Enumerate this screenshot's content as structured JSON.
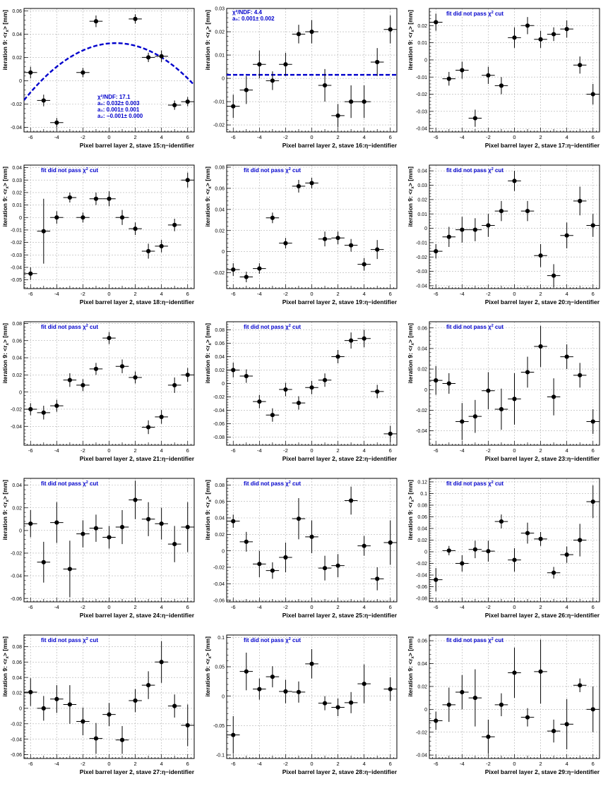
{
  "common": {
    "ylabel": "iteration 9: <r",
    "ylabel_sub": "x",
    "ylabel_unit": "> [mm]",
    "no_fit_text": "fit did not pass χ",
    "no_fit_sup": "2",
    "no_fit_tail": " cut",
    "fit_color": "#0000cc",
    "marker_color": "#000000",
    "grid_color": "#b0b0b0"
  },
  "chart_data": [
    {
      "type": "scatter",
      "title": "",
      "xlabel": "Pixel barrel layer 2, stave 15:η−identifier",
      "ylabel": "iteration 9: <r_x> [mm]",
      "xlim": [
        -6.5,
        6.5
      ],
      "ylim": [
        -0.044,
        0.062
      ],
      "yticks": [
        "-0.04",
        "-0.02",
        "0",
        "0.02",
        "0.04",
        "0.06"
      ],
      "ytick_values": [
        -0.04,
        -0.02,
        0,
        0.02,
        0.04,
        0.06
      ],
      "xticks": [
        -6,
        -4,
        -2,
        0,
        2,
        4,
        6
      ],
      "x": [
        -6,
        -5,
        -4,
        -2,
        -1,
        2,
        3,
        4,
        5,
        6
      ],
      "y": [
        0.007,
        -0.017,
        -0.036,
        0.007,
        0.051,
        0.053,
        0.02,
        0.021,
        -0.021,
        -0.018
      ],
      "yerr": [
        0.005,
        0.005,
        0.004,
        0.004,
        0.005,
        0.004,
        0.004,
        0.005,
        0.004,
        0.004
      ],
      "fit": {
        "type": "pol2",
        "coef": [
          0.032,
          0.001,
          -0.001
        ],
        "lines": [
          "χ²/NDF: 17.1",
          "a₀: 0.032± 0.003",
          "a₁: 0.001± 0.001",
          "a₂: −0.001± 0.000"
        ]
      },
      "annotation": ""
    },
    {
      "type": "scatter",
      "xlabel": "Pixel barrel layer 2, stave 16:η−identifier",
      "ylabel": "iteration 9: <r_x> [mm]",
      "xlim": [
        -6.5,
        6.5
      ],
      "ylim": [
        -0.023,
        0.03
      ],
      "yticks": [
        "-0.02",
        "-0.01",
        "0",
        "0.01",
        "0.02",
        "0.03"
      ],
      "ytick_values": [
        -0.02,
        -0.01,
        0,
        0.01,
        0.02,
        0.03
      ],
      "xticks": [
        -6,
        -4,
        -2,
        0,
        2,
        4,
        6
      ],
      "x": [
        -6,
        -5,
        -4,
        -3,
        -2,
        -1,
        0,
        1,
        2,
        3,
        4,
        5,
        6
      ],
      "y": [
        -0.012,
        -0.005,
        0.006,
        -0.001,
        0.006,
        0.019,
        0.02,
        -0.003,
        -0.016,
        -0.01,
        -0.01,
        0.007,
        0.021
      ],
      "yerr": [
        0.005,
        0.006,
        0.006,
        0.004,
        0.005,
        0.004,
        0.005,
        0.007,
        0.005,
        0.007,
        0.007,
        0.006,
        0.006
      ],
      "fit": {
        "type": "pol0",
        "coef": [
          0.0015
        ],
        "lines": [
          "χ²/NDF: 4.4",
          "a₀: 0.001± 0.002"
        ]
      },
      "annotation": ""
    },
    {
      "type": "scatter",
      "xlabel": "Pixel barrel layer 2, stave 17:η−identifier",
      "ylabel": "iteration 9: <r_x> [mm]",
      "xlim": [
        -6.5,
        6.5
      ],
      "ylim": [
        -0.042,
        0.03
      ],
      "yticks": [
        "-0.04",
        "-0.03",
        "-0.02",
        "-0.01",
        "0",
        "0.01",
        "0.02"
      ],
      "ytick_values": [
        -0.04,
        -0.03,
        -0.02,
        -0.01,
        0,
        0.01,
        0.02
      ],
      "xticks": [
        -6,
        -4,
        -2,
        0,
        2,
        4,
        6
      ],
      "x": [
        -6,
        -5,
        -4,
        -3,
        -2,
        -1,
        0,
        1,
        2,
        3,
        4,
        5,
        6
      ],
      "y": [
        0.022,
        -0.011,
        -0.006,
        -0.034,
        -0.009,
        -0.015,
        0.013,
        0.02,
        0.012,
        0.015,
        0.018,
        -0.003,
        -0.02
      ],
      "yerr": [
        0.005,
        0.004,
        0.005,
        0.005,
        0.005,
        0.005,
        0.006,
        0.005,
        0.005,
        0.004,
        0.005,
        0.005,
        0.006
      ],
      "fit": null,
      "annotation": "no_fit"
    },
    {
      "type": "scatter",
      "xlabel": "Pixel barrel layer 2, stave 18:η−identifier",
      "ylabel": "iteration 9: <r_x> [mm]",
      "xlim": [
        -6.5,
        6.5
      ],
      "ylim": [
        -0.057,
        0.042
      ],
      "yticks": [
        "-0.05",
        "-0.04",
        "-0.03",
        "-0.02",
        "-0.01",
        "0",
        "0.01",
        "0.02",
        "0.03",
        "0.04"
      ],
      "ytick_values": [
        -0.05,
        -0.04,
        -0.03,
        -0.02,
        -0.01,
        0,
        0.01,
        0.02,
        0.03,
        0.04
      ],
      "xticks": [
        -6,
        -4,
        -2,
        0,
        2,
        4,
        6
      ],
      "x": [
        -6,
        -5,
        -4,
        -3,
        -2,
        -1,
        0,
        1,
        2,
        3,
        4,
        5,
        6
      ],
      "y": [
        -0.045,
        -0.011,
        0.0,
        0.016,
        0.0,
        0.015,
        0.015,
        0.0,
        -0.009,
        -0.027,
        -0.023,
        -0.006,
        0.03
      ],
      "yerr": [
        0.005,
        0.026,
        0.005,
        0.004,
        0.004,
        0.005,
        0.006,
        0.006,
        0.005,
        0.006,
        0.005,
        0.005,
        0.006
      ],
      "fit": null,
      "annotation": "no_fit"
    },
    {
      "type": "scatter",
      "xlabel": "Pixel barrel layer 2, stave 19:η−identifier",
      "ylabel": "iteration 9: <r_x> [mm]",
      "xlim": [
        -6.5,
        6.5
      ],
      "ylim": [
        -0.035,
        0.082
      ],
      "yticks": [
        "-0.02",
        "0",
        "0.02",
        "0.04",
        "0.06",
        "0.08"
      ],
      "ytick_values": [
        -0.02,
        0,
        0.02,
        0.04,
        0.06,
        0.08
      ],
      "xticks": [
        -6,
        -4,
        -2,
        0,
        2,
        4,
        6
      ],
      "x": [
        -6,
        -5,
        -4,
        -3,
        -2,
        -1,
        0,
        1,
        2,
        3,
        4,
        5,
        6
      ],
      "y": [
        -0.017,
        -0.024,
        -0.016,
        0.032,
        0.008,
        0.062,
        0.065,
        0.012,
        0.013,
        0.006,
        -0.012,
        0.002,
        null
      ],
      "yerr": [
        0.006,
        0.005,
        0.005,
        0.005,
        0.005,
        0.006,
        0.005,
        0.007,
        0.006,
        0.006,
        0.006,
        0.009,
        null
      ],
      "fit": null,
      "annotation": "no_fit"
    },
    {
      "type": "scatter",
      "xlabel": "Pixel barrel layer 2, stave 20:η−identifier",
      "ylabel": "iteration 9: <r_x> [mm]",
      "xlim": [
        -6.5,
        6.5
      ],
      "ylim": [
        -0.042,
        0.044
      ],
      "yticks": [
        "-0.04",
        "-0.03",
        "-0.02",
        "-0.01",
        "0",
        "0.01",
        "0.02",
        "0.03",
        "0.04"
      ],
      "ytick_values": [
        -0.04,
        -0.03,
        -0.02,
        -0.01,
        0,
        0.01,
        0.02,
        0.03,
        0.04
      ],
      "xticks": [
        -6,
        -4,
        -2,
        0,
        2,
        4,
        6
      ],
      "x": [
        -6,
        -5,
        -4,
        -3,
        -2,
        -1,
        0,
        1,
        2,
        3,
        4,
        5,
        6
      ],
      "y": [
        -0.016,
        -0.006,
        -0.001,
        -0.001,
        0.002,
        0.012,
        0.033,
        0.012,
        -0.019,
        -0.033,
        -0.005,
        0.019,
        0.002
      ],
      "yerr": [
        0.005,
        0.007,
        0.009,
        0.008,
        0.008,
        0.007,
        0.007,
        0.007,
        0.008,
        0.008,
        0.009,
        0.01,
        0.008
      ],
      "fit": null,
      "annotation": "no_fit"
    },
    {
      "type": "scatter",
      "xlabel": "Pixel barrel layer 2, stave 21:η−identifier",
      "ylabel": "iteration 9: <r_x> [mm]",
      "xlim": [
        -6.5,
        6.5
      ],
      "ylim": [
        -0.062,
        0.082
      ],
      "yticks": [
        "-0.04",
        "-0.02",
        "0",
        "0.02",
        "0.04",
        "0.06",
        "0.08"
      ],
      "ytick_values": [
        -0.04,
        -0.02,
        0,
        0.02,
        0.04,
        0.06,
        0.08
      ],
      "xticks": [
        -6,
        -4,
        -2,
        0,
        2,
        4,
        6
      ],
      "x": [
        -6,
        -5,
        -4,
        -3,
        -2,
        -1,
        0,
        1,
        2,
        3,
        4,
        5,
        6
      ],
      "y": [
        -0.02,
        -0.024,
        -0.016,
        0.014,
        0.008,
        0.027,
        0.063,
        0.03,
        0.017,
        -0.041,
        -0.029,
        0.008,
        0.02
      ],
      "yerr": [
        0.007,
        0.008,
        0.007,
        0.008,
        0.007,
        0.007,
        0.007,
        0.008,
        0.007,
        0.008,
        0.008,
        0.009,
        0.008
      ],
      "fit": null,
      "annotation": "no_fit"
    },
    {
      "type": "scatter",
      "xlabel": "Pixel barrel layer 2, stave 22:η−identifier",
      "ylabel": "iteration 9: <r_x> [mm]",
      "xlim": [
        -6.5,
        6.5
      ],
      "ylim": [
        -0.092,
        0.092
      ],
      "yticks": [
        "-0.08",
        "-0.06",
        "-0.04",
        "-0.02",
        "0",
        "0.02",
        "0.04",
        "0.06",
        "0.08"
      ],
      "ytick_values": [
        -0.08,
        -0.06,
        -0.04,
        -0.02,
        0,
        0.02,
        0.04,
        0.06,
        0.08
      ],
      "xticks": [
        -6,
        -4,
        -2,
        0,
        2,
        4,
        6
      ],
      "x": [
        -6,
        -5,
        -4,
        -3,
        -2,
        -1,
        0,
        1,
        2,
        3,
        4,
        5,
        6
      ],
      "y": [
        0.02,
        0.011,
        -0.027,
        -0.047,
        -0.009,
        -0.029,
        -0.006,
        0.005,
        0.04,
        0.064,
        0.067,
        -0.012,
        -0.075
      ],
      "yerr": [
        0.011,
        0.01,
        0.01,
        0.01,
        0.01,
        0.01,
        0.01,
        0.01,
        0.01,
        0.012,
        0.013,
        0.01,
        0.012
      ],
      "fit": null,
      "annotation": "no_fit"
    },
    {
      "type": "scatter",
      "xlabel": "Pixel barrel layer 2, stave 23:η−identifier",
      "ylabel": "iteration 9: <r_x> [mm]",
      "xlim": [
        -6.5,
        6.5
      ],
      "ylim": [
        -0.054,
        0.066
      ],
      "yticks": [
        "-0.04",
        "-0.02",
        "0",
        "0.02",
        "0.04",
        "0.06"
      ],
      "ytick_values": [
        -0.04,
        -0.02,
        0,
        0.02,
        0.04,
        0.06
      ],
      "xticks": [
        -6,
        -4,
        -2,
        0,
        2,
        4,
        6
      ],
      "x": [
        -6,
        -5,
        -4,
        -3,
        -2,
        -1,
        0,
        1,
        2,
        3,
        4,
        5,
        6
      ],
      "y": [
        0.009,
        0.006,
        -0.031,
        -0.026,
        -0.001,
        -0.019,
        -0.009,
        0.017,
        0.042,
        -0.007,
        0.032,
        0.014,
        -0.031
      ],
      "yerr": [
        0.014,
        0.01,
        0.018,
        0.016,
        0.018,
        0.02,
        0.025,
        0.015,
        0.02,
        0.018,
        0.012,
        0.012,
        0.012
      ],
      "fit": null,
      "annotation": "no_fit"
    },
    {
      "type": "scatter",
      "xlabel": "Pixel barrel layer 2, stave 24:η−identifier",
      "ylabel": "iteration 9: <r_x> [mm]",
      "xlim": [
        -6.5,
        6.5
      ],
      "ylim": [
        -0.063,
        0.046
      ],
      "yticks": [
        "-0.06",
        "-0.04",
        "-0.02",
        "0",
        "0.02",
        "0.04"
      ],
      "ytick_values": [
        -0.06,
        -0.04,
        -0.02,
        0,
        0.02,
        0.04
      ],
      "xticks": [
        -6,
        -4,
        -2,
        0,
        2,
        4,
        6
      ],
      "x": [
        -6,
        -5,
        -4,
        -3,
        -2,
        -1,
        0,
        1,
        2,
        3,
        4,
        5,
        6
      ],
      "y": [
        0.006,
        -0.028,
        0.007,
        -0.034,
        -0.003,
        0.002,
        -0.006,
        0.003,
        0.027,
        0.01,
        0.006,
        -0.012,
        0.003
      ],
      "yerr": [
        0.012,
        0.018,
        0.018,
        0.025,
        0.012,
        0.012,
        0.01,
        0.015,
        0.017,
        0.015,
        0.014,
        0.016,
        0.022
      ],
      "fit": null,
      "annotation": "no_fit"
    },
    {
      "type": "scatter",
      "xlabel": "Pixel barrel layer 2, stave 25:η−identifier",
      "ylabel": "iteration 9: <r_x> [mm]",
      "xlim": [
        -6.5,
        6.5
      ],
      "ylim": [
        -0.062,
        0.088
      ],
      "yticks": [
        "-0.06",
        "-0.04",
        "-0.02",
        "0",
        "0.02",
        "0.04",
        "0.06",
        "0.08"
      ],
      "ytick_values": [
        -0.06,
        -0.04,
        -0.02,
        0,
        0.02,
        0.04,
        0.06,
        0.08
      ],
      "xticks": [
        -6,
        -4,
        -2,
        0,
        2,
        4,
        6
      ],
      "x": [
        -6,
        -5,
        -4,
        -3,
        -2,
        -1,
        0,
        1,
        2,
        3,
        4,
        5,
        6
      ],
      "y": [
        0.036,
        0.011,
        -0.016,
        -0.024,
        -0.008,
        0.039,
        0.017,
        -0.021,
        -0.018,
        0.061,
        0.006,
        -0.034,
        0.01
      ],
      "yerr": [
        0.008,
        0.012,
        0.016,
        0.01,
        0.018,
        0.025,
        0.02,
        0.015,
        0.014,
        0.017,
        0.012,
        0.014,
        0.027
      ],
      "fit": null,
      "annotation": "no_fit"
    },
    {
      "type": "scatter",
      "xlabel": "Pixel barrel layer 2, stave 26:η−identifier",
      "ylabel": "iteration 9: <r_x> [mm]",
      "xlim": [
        -6.5,
        6.5
      ],
      "ylim": [
        -0.086,
        0.126
      ],
      "yticks": [
        "-0.08",
        "-0.06",
        "-0.04",
        "-0.02",
        "0",
        "0.02",
        "0.04",
        "0.06",
        "0.08",
        "0.1",
        "0.12"
      ],
      "ytick_values": [
        -0.08,
        -0.06,
        -0.04,
        -0.02,
        0,
        0.02,
        0.04,
        0.06,
        0.08,
        0.1,
        0.12
      ],
      "xticks": [
        -6,
        -4,
        -2,
        0,
        2,
        4,
        6
      ],
      "x": [
        -6,
        -5,
        -4,
        -3,
        -2,
        -1,
        0,
        1,
        2,
        3,
        4,
        5,
        6
      ],
      "y": [
        -0.048,
        0.002,
        -0.02,
        0.004,
        0.001,
        0.052,
        -0.014,
        0.032,
        0.022,
        -0.036,
        -0.005,
        0.02,
        0.086
      ],
      "yerr": [
        0.02,
        0.008,
        0.014,
        0.015,
        0.018,
        0.012,
        0.02,
        0.018,
        0.012,
        0.01,
        0.014,
        0.028,
        0.028
      ],
      "fit": null,
      "annotation": "no_fit"
    },
    {
      "type": "scatter",
      "xlabel": "Pixel barrel layer 2, stave 27:η−identifier",
      "ylabel": "iteration 9: <r_x> [mm]",
      "xlim": [
        -6.5,
        6.5
      ],
      "ylim": [
        -0.065,
        0.095
      ],
      "yticks": [
        "-0.06",
        "-0.04",
        "-0.02",
        "0",
        "0.02",
        "0.04",
        "0.06",
        "0.08"
      ],
      "ytick_values": [
        -0.06,
        -0.04,
        -0.02,
        0,
        0.02,
        0.04,
        0.06,
        0.08
      ],
      "xticks": [
        -6,
        -4,
        -2,
        0,
        2,
        4,
        6
      ],
      "x": [
        -6,
        -5,
        -4,
        -3,
        -2,
        -1,
        0,
        1,
        2,
        3,
        4,
        5,
        6
      ],
      "y": [
        0.021,
        0.0,
        0.012,
        0.005,
        -0.017,
        -0.039,
        -0.008,
        -0.041,
        0.01,
        0.03,
        0.06,
        0.003,
        -0.022
      ],
      "yerr": [
        0.018,
        0.016,
        0.018,
        0.025,
        0.018,
        0.02,
        0.015,
        0.018,
        0.015,
        0.018,
        0.027,
        0.015,
        0.027
      ],
      "fit": null,
      "annotation": "no_fit"
    },
    {
      "type": "scatter",
      "xlabel": "Pixel barrel layer 2, stave 28:η−identifier",
      "ylabel": "iteration 9: <r_x> [mm]",
      "xlim": [
        -6.5,
        6.5
      ],
      "ylim": [
        -0.106,
        0.104
      ],
      "yticks": [
        "-0.1",
        "-0.05",
        "0",
        "0.05",
        "0.1"
      ],
      "ytick_values": [
        -0.1,
        -0.05,
        0,
        0.05,
        0.1
      ],
      "xticks": [
        -6,
        -4,
        -2,
        0,
        2,
        4,
        6
      ],
      "x": [
        -6,
        -5,
        -4,
        -3,
        -2,
        -1,
        0,
        1,
        2,
        3,
        4,
        5,
        6
      ],
      "y": [
        -0.066,
        0.042,
        0.012,
        0.033,
        0.008,
        0.007,
        0.055,
        -0.012,
        -0.019,
        -0.011,
        0.021,
        null,
        0.012
      ],
      "yerr": [
        0.032,
        0.032,
        0.018,
        0.018,
        0.02,
        0.018,
        0.025,
        0.012,
        0.015,
        0.018,
        0.033,
        null,
        0.02
      ],
      "fit": null,
      "annotation": "no_fit"
    },
    {
      "type": "scatter",
      "xlabel": "Pixel barrel layer 2, stave 29:η−identifier",
      "ylabel": "iteration 9: <r_x> [mm]",
      "xlim": [
        -6.5,
        6.5
      ],
      "ylim": [
        -0.043,
        0.065
      ],
      "yticks": [
        "-0.04",
        "-0.02",
        "0",
        "0.02",
        "0.04",
        "0.06"
      ],
      "ytick_values": [
        -0.04,
        -0.02,
        0,
        0.02,
        0.04,
        0.06
      ],
      "xticks": [
        -6,
        -4,
        -2,
        0,
        2,
        4,
        6
      ],
      "x": [
        -6,
        -5,
        -4,
        -3,
        -2,
        -1,
        0,
        1,
        2,
        3,
        4,
        5,
        6
      ],
      "y": [
        -0.01,
        0.004,
        0.015,
        0.01,
        -0.024,
        0.004,
        0.032,
        -0.007,
        0.033,
        -0.019,
        -0.013,
        0.021,
        0.0
      ],
      "yerr": [
        0.008,
        0.015,
        0.015,
        0.025,
        0.015,
        0.01,
        0.022,
        0.008,
        0.028,
        0.01,
        0.022,
        0.006,
        0.02
      ],
      "fit": null,
      "annotation": "no_fit"
    }
  ]
}
